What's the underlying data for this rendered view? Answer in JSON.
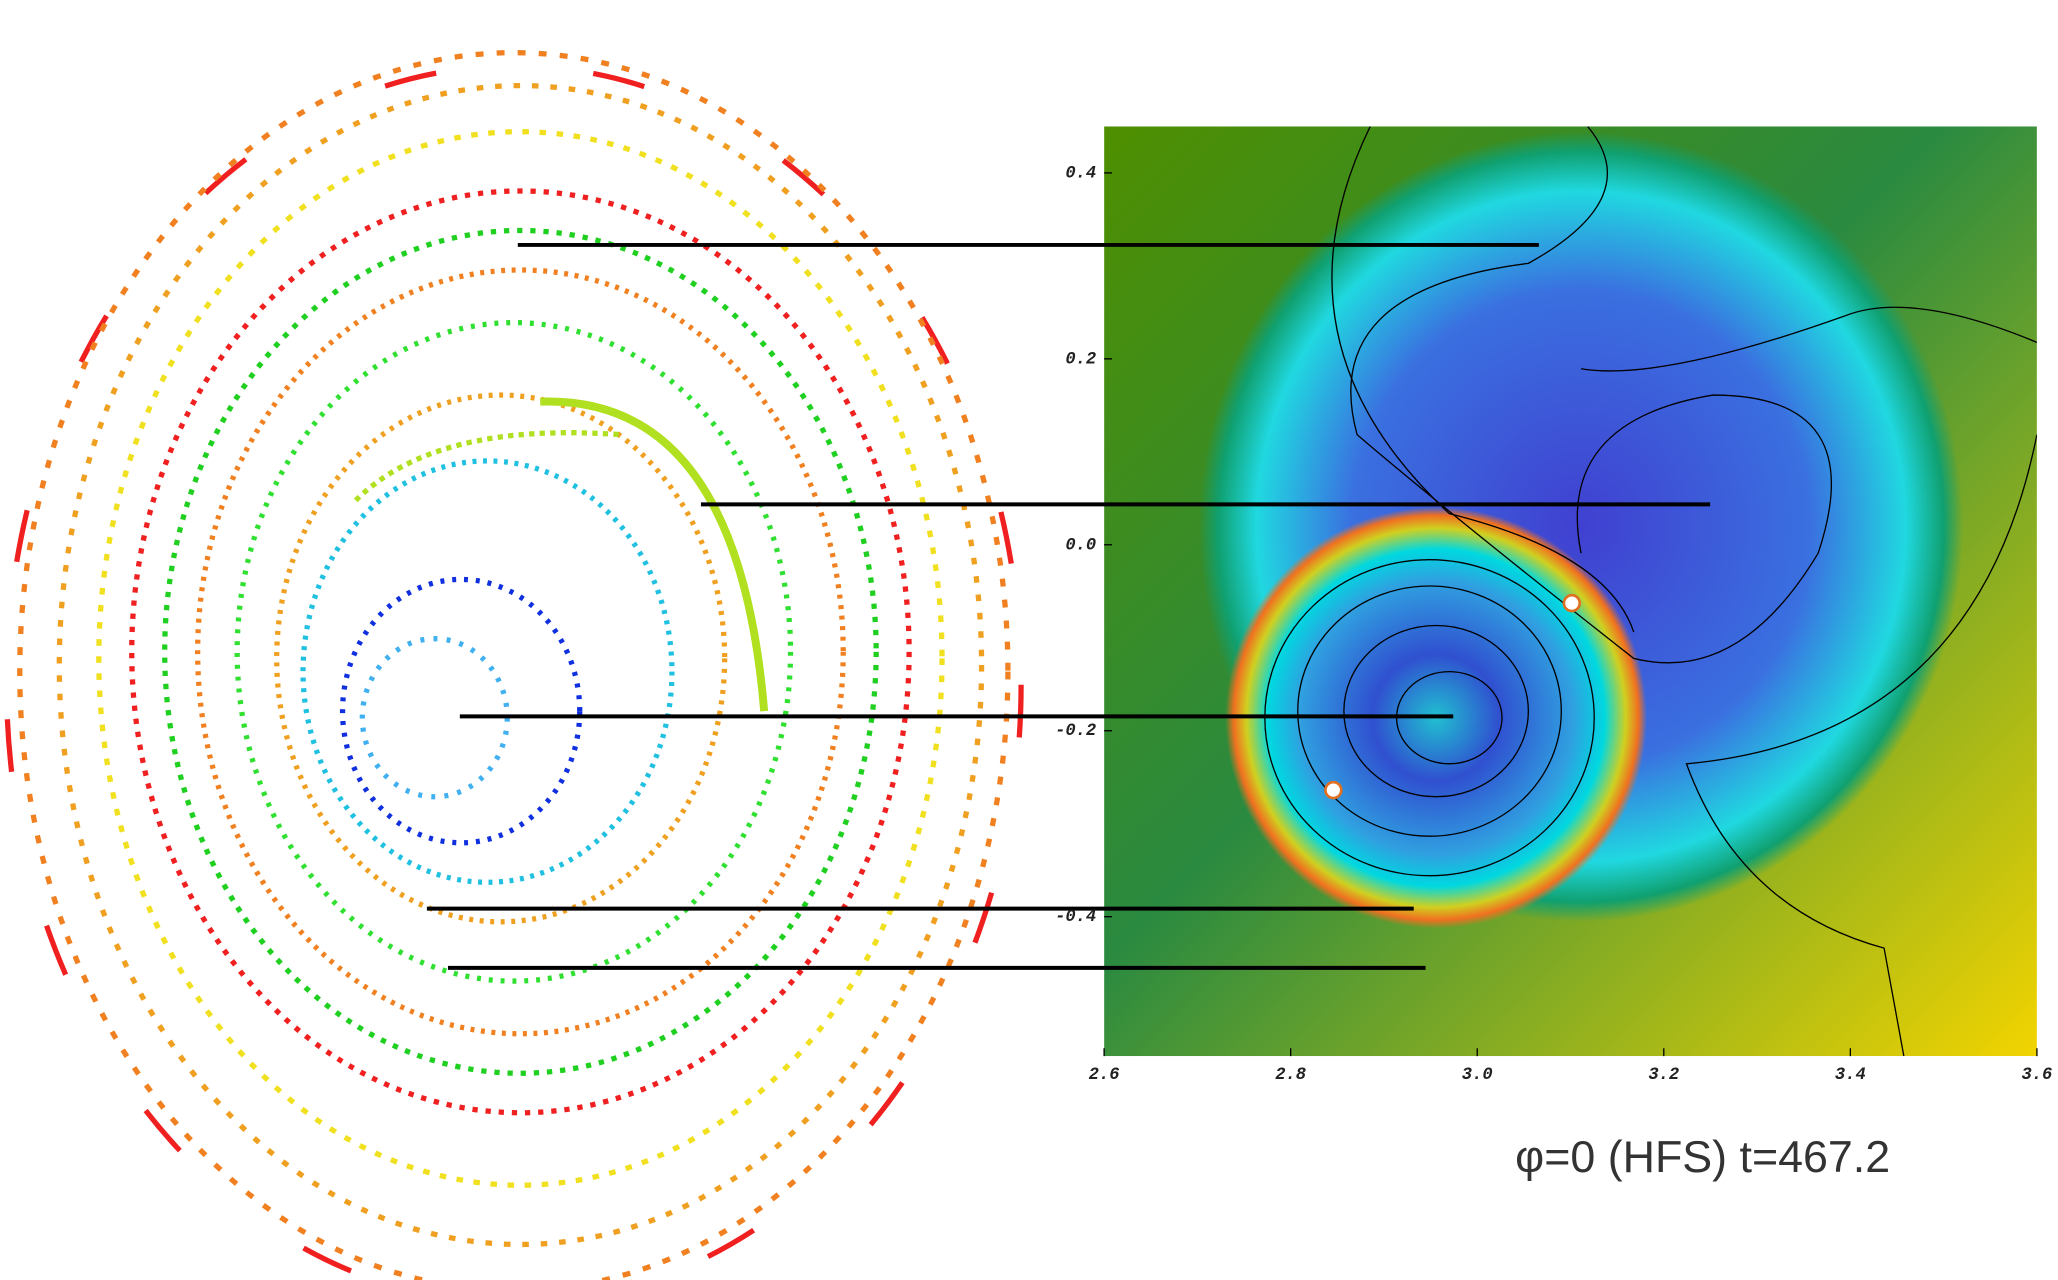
{
  "chart_data": {
    "type": "heatmap",
    "annotation": "φ=0 (HFS)  t=467.2",
    "xlim": [
      2.6,
      3.6
    ],
    "xticks": [
      2.6,
      2.8,
      {
        "value": 3,
        "label": "3.0"
      },
      3.2,
      3.4,
      3.6
    ],
    "ylim": [
      -0.55,
      0.45
    ],
    "yticks": [
      0.4,
      0.2,
      {
        "value": 0,
        "label": "0.0"
      },
      -0.2,
      -0.4
    ]
  }
}
